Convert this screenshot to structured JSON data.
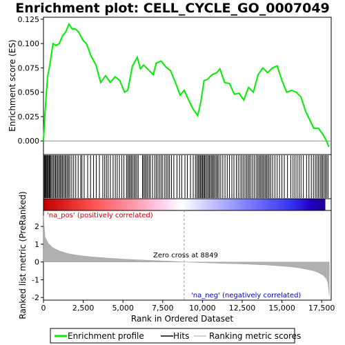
{
  "chart_data": {
    "type": "line",
    "title": "Enrichment plot: CELL_CYCLE_GO_0007049",
    "xlabel": "Rank in Ordered Dataset",
    "ylabel_top": "Enrichment score (ES)",
    "ylabel_bottom": "Ranked list metric (PreRanked)",
    "xlim": [
      0,
      18100
    ],
    "ylim_es": [
      -0.014,
      0.127
    ],
    "ylim_metric": [
      -2.15,
      2.9
    ],
    "xticks": [
      0,
      2500,
      5000,
      7500,
      10000,
      12500,
      15000,
      17500
    ],
    "xtick_labels": [
      "0",
      "2,500",
      "5,000",
      "7,500",
      "10,000",
      "12,500",
      "15,000",
      "17,500"
    ],
    "es_yticks": [
      0.0,
      0.025,
      0.05,
      0.075,
      0.1,
      0.125
    ],
    "es_ytick_labels": [
      "0.000",
      "0.025",
      "0.050",
      "0.075",
      "0.100",
      "0.125"
    ],
    "metric_yticks": [
      -2,
      -1,
      0,
      1,
      2
    ],
    "metric_ytick_labels": [
      "-2",
      "-1",
      "0",
      "1",
      "2"
    ],
    "zero_cross_rank": 8849,
    "zero_cross_label": "Zero cross at 8849",
    "pos_label": "'na_pos' (positively correlated)",
    "neg_label": "'na_neg' (negatively correlated)",
    "enrichment_profile": {
      "x": [
        0,
        100,
        250,
        400,
        600,
        800,
        1000,
        1200,
        1400,
        1600,
        1800,
        2000,
        2200,
        2500,
        2700,
        3000,
        3300,
        3600,
        3900,
        4200,
        4500,
        4800,
        5100,
        5300,
        5600,
        5900,
        6100,
        6300,
        6600,
        6900,
        7100,
        7400,
        7700,
        8000,
        8300,
        8600,
        8850,
        9100,
        9400,
        9700,
        9900,
        10100,
        10300,
        10600,
        10900,
        11100,
        11400,
        11700,
        12000,
        12300,
        12600,
        12900,
        13200,
        13500,
        13800,
        14100,
        14400,
        14700,
        15000,
        15300,
        15600,
        15900,
        16200,
        16500,
        16800,
        17000,
        17300,
        17600,
        17800,
        17950
      ],
      "y": [
        0.0,
        0.03,
        0.065,
        0.078,
        0.1,
        0.098,
        0.1,
        0.108,
        0.112,
        0.12,
        0.115,
        0.115,
        0.112,
        0.103,
        0.1,
        0.087,
        0.078,
        0.06,
        0.067,
        0.06,
        0.066,
        0.062,
        0.05,
        0.052,
        0.077,
        0.086,
        0.074,
        0.078,
        0.073,
        0.068,
        0.08,
        0.082,
        0.076,
        0.072,
        0.06,
        0.047,
        0.052,
        0.043,
        0.033,
        0.026,
        0.04,
        0.062,
        0.063,
        0.068,
        0.07,
        0.074,
        0.06,
        0.059,
        0.048,
        0.049,
        0.042,
        0.055,
        0.05,
        0.068,
        0.075,
        0.07,
        0.075,
        0.077,
        0.062,
        0.05,
        0.052,
        0.05,
        0.045,
        0.03,
        0.02,
        0.013,
        0.013,
        0.006,
        0.0,
        -0.006
      ]
    },
    "ranked_metric": {
      "x": [
        0,
        100,
        300,
        600,
        1000,
        1500,
        2000,
        2500,
        3000,
        4000,
        5000,
        6000,
        7000,
        8000,
        8849,
        10000,
        11000,
        12000,
        13000,
        14000,
        15000,
        15500,
        16000,
        16500,
        17000,
        17300,
        17600,
        17800,
        17900,
        17980
      ],
      "y": [
        2.6,
        1.4,
        1.05,
        0.8,
        0.62,
        0.48,
        0.4,
        0.34,
        0.29,
        0.22,
        0.16,
        0.12,
        0.08,
        0.04,
        0.0,
        -0.04,
        -0.07,
        -0.1,
        -0.13,
        -0.17,
        -0.23,
        -0.27,
        -0.32,
        -0.4,
        -0.5,
        -0.6,
        -0.75,
        -0.95,
        -1.2,
        -1.9
      ]
    },
    "hit_ranks": [
      10,
      60,
      110,
      160,
      210,
      260,
      310,
      370,
      420,
      470,
      540,
      620,
      690,
      760,
      830,
      900,
      980,
      1050,
      1120,
      1190,
      1270,
      1350,
      1420,
      1500,
      1580,
      1660,
      1780,
      1900,
      2030,
      2180,
      2340,
      2420,
      2560,
      2780,
      2960,
      3150,
      3320,
      3520,
      3730,
      3850,
      3960,
      4070,
      4210,
      4380,
      4520,
      4640,
      4780,
      4930,
      5060,
      5220,
      5300,
      5380,
      5450,
      5530,
      5610,
      5700,
      5780,
      5870,
      5960,
      6230,
      6300,
      6380,
      6460,
      6540,
      6640,
      6720,
      6860,
      7000,
      7100,
      7200,
      7300,
      7400,
      7500,
      7630,
      7730,
      7830,
      7930,
      8050,
      8200,
      8400,
      8560,
      8700,
      8900,
      9050,
      9250,
      9420,
      9560,
      9650,
      9730,
      9800,
      9870,
      9940,
      10000,
      10070,
      10130,
      10200,
      10280,
      10360,
      10430,
      10500,
      10580,
      10650,
      10720,
      10800,
      10880,
      10960,
      11040,
      11150,
      11280,
      11420,
      11560,
      11700,
      11850,
      11980,
      12130,
      12250,
      12370,
      12480,
      12580,
      12680,
      12780,
      12870,
      12950,
      13050,
      13160,
      13270,
      13380,
      13480,
      13560,
      13640,
      13720,
      13800,
      13880,
      13960,
      14040,
      14120,
      14200,
      14300,
      14420,
      14560,
      14700,
      14850,
      15000,
      15150,
      15350,
      15560,
      15700,
      15820,
      15950,
      16080,
      16200,
      16350,
      16550,
      16700,
      16850,
      16980,
      17100,
      17200,
      17300,
      17400,
      17480,
      17560,
      17650,
      17730,
      17820,
      17900
    ]
  },
  "legend": {
    "entries": [
      {
        "label": "Enrichment profile",
        "color": "#00ee00",
        "style": "line"
      },
      {
        "label": "Hits",
        "color": "#000000",
        "style": "line"
      },
      {
        "label": "Ranking metric scores",
        "color": "#c0c0c0",
        "style": "line"
      }
    ]
  },
  "colors": {
    "profile": "#00ee00",
    "hits": "#000000",
    "metric_fill": "#b0b0b0",
    "zero_cross_line": "#a0a0a0",
    "gradient_pos": "#ff0000",
    "gradient_mid": "#ffffff",
    "gradient_neg": "#0000ff",
    "gradient_neg_end": "#1a00a0"
  }
}
